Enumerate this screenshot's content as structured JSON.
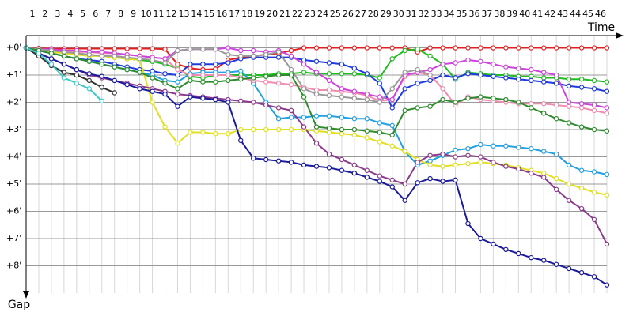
{
  "chart_data": {
    "type": "line",
    "x_label": "Time",
    "y_label": "Gap",
    "x": [
      0,
      1,
      2,
      3,
      4,
      5,
      6,
      7,
      8,
      9,
      10,
      11,
      12,
      13,
      14,
      15,
      16,
      17,
      18,
      19,
      20,
      21,
      22,
      23,
      24,
      25,
      26,
      27,
      28,
      29,
      30,
      31,
      32,
      33,
      34,
      35,
      36,
      37,
      38,
      39,
      40,
      41,
      42,
      43,
      44,
      45,
      46
    ],
    "xlim": [
      0,
      46
    ],
    "xticks": [
      {
        "value": 0.5,
        "label": "1"
      },
      {
        "value": 1.5,
        "label": "2"
      },
      {
        "value": 2.5,
        "label": "3"
      },
      {
        "value": 3.5,
        "label": "4"
      },
      {
        "value": 4.5,
        "label": "5"
      },
      {
        "value": 5.5,
        "label": "6"
      },
      {
        "value": 6.5,
        "label": "7"
      },
      {
        "value": 7.5,
        "label": "8"
      },
      {
        "value": 8.5,
        "label": "9"
      },
      {
        "value": 9.5,
        "label": "10"
      },
      {
        "value": 10.5,
        "label": "11"
      },
      {
        "value": 11.5,
        "label": "12"
      },
      {
        "value": 12.5,
        "label": "13"
      },
      {
        "value": 13.5,
        "label": "14"
      },
      {
        "value": 14.5,
        "label": "15"
      },
      {
        "value": 15.5,
        "label": "16"
      },
      {
        "value": 16.5,
        "label": "17"
      },
      {
        "value": 17.5,
        "label": "18"
      },
      {
        "value": 18.5,
        "label": "19"
      },
      {
        "value": 19.5,
        "label": "20"
      },
      {
        "value": 20.5,
        "label": "21"
      },
      {
        "value": 21.5,
        "label": "22"
      },
      {
        "value": 22.5,
        "label": "23"
      },
      {
        "value": 23.5,
        "label": "24"
      },
      {
        "value": 24.5,
        "label": "25"
      },
      {
        "value": 25.5,
        "label": "26"
      },
      {
        "value": 26.5,
        "label": "27"
      },
      {
        "value": 27.5,
        "label": "28"
      },
      {
        "value": 28.5,
        "label": "29"
      },
      {
        "value": 29.5,
        "label": "30"
      },
      {
        "value": 30.5,
        "label": "31"
      },
      {
        "value": 31.5,
        "label": "32"
      },
      {
        "value": 32.5,
        "label": "33"
      },
      {
        "value": 33.5,
        "label": "34"
      },
      {
        "value": 34.5,
        "label": "35"
      },
      {
        "value": 35.5,
        "label": "36"
      },
      {
        "value": 36.5,
        "label": "37"
      },
      {
        "value": 37.5,
        "label": "38"
      },
      {
        "value": 38.5,
        "label": "39"
      },
      {
        "value": 39.5,
        "label": "40"
      },
      {
        "value": 40.5,
        "label": "41"
      },
      {
        "value": 41.5,
        "label": "42"
      },
      {
        "value": 42.5,
        "label": "43"
      },
      {
        "value": 43.5,
        "label": "44"
      },
      {
        "value": 44.5,
        "label": "45"
      },
      {
        "value": 45.5,
        "label": "46"
      }
    ],
    "ylim": [
      -0.45,
      9
    ],
    "yticks": [
      {
        "value": 0,
        "label": "+0'"
      },
      {
        "value": 1,
        "label": "+1'"
      },
      {
        "value": 2,
        "label": "+2'"
      },
      {
        "value": 3,
        "label": "+3'"
      },
      {
        "value": 4,
        "label": "+4'"
      },
      {
        "value": 5,
        "label": "+5'"
      },
      {
        "value": 6,
        "label": "+6'"
      },
      {
        "value": 7,
        "label": "+7'"
      },
      {
        "value": 8,
        "label": "+8'"
      }
    ],
    "grid": true,
    "series": [
      {
        "color": "#e02020",
        "values": [
          0,
          0.02,
          0.03,
          0.03,
          0.03,
          0.03,
          0.03,
          0.03,
          0.03,
          0.03,
          0.03,
          0.05,
          0.6,
          0.75,
          0.8,
          0.78,
          0.45,
          0.35,
          0.3,
          0.25,
          0.2,
          0.1,
          0,
          0,
          0,
          0,
          0,
          0,
          0,
          0,
          0,
          0.15,
          0,
          0,
          0,
          0,
          0,
          0,
          0,
          0,
          0,
          0,
          0,
          0,
          0,
          0,
          0
        ]
      },
      {
        "color": "#22bb22",
        "values": [
          0,
          0.05,
          0.1,
          0.15,
          0.2,
          0.25,
          0.3,
          0.35,
          0.4,
          0.45,
          0.5,
          0.6,
          0.75,
          1.05,
          1.1,
          1.0,
          1.0,
          1.0,
          1.0,
          1.0,
          0.95,
          0.95,
          0.9,
          0.95,
          0.95,
          0.95,
          0.95,
          1.0,
          1.1,
          0.4,
          0.1,
          0.05,
          0.3,
          0.6,
          1.15,
          0.9,
          0.95,
          1.0,
          1.0,
          1.05,
          1.05,
          1.1,
          1.1,
          1.15,
          1.15,
          1.2,
          1.25
        ]
      },
      {
        "color": "#1e3adc",
        "values": [
          0,
          0.1,
          0.2,
          0.3,
          0.4,
          0.45,
          0.5,
          0.6,
          0.7,
          0.8,
          0.85,
          0.95,
          1.0,
          0.6,
          0.6,
          0.6,
          0.55,
          0.4,
          0.35,
          0.35,
          0.35,
          0.35,
          0.45,
          0.5,
          0.55,
          0.6,
          0.75,
          0.95,
          1.3,
          2.2,
          1.5,
          1.3,
          1.2,
          1.0,
          1.1,
          0.95,
          1.0,
          1.05,
          1.1,
          1.15,
          1.2,
          1.25,
          1.3,
          1.4,
          1.45,
          1.5,
          1.6
        ]
      },
      {
        "color": "#22a0e0",
        "values": [
          0,
          0.1,
          0.2,
          0.3,
          0.4,
          0.5,
          0.6,
          0.7,
          0.8,
          0.9,
          1.0,
          1.2,
          1.25,
          0.95,
          0.9,
          0.9,
          0.9,
          0.85,
          1.3,
          2.0,
          2.6,
          2.55,
          2.55,
          2.5,
          2.5,
          2.55,
          2.6,
          2.6,
          2.75,
          2.85,
          3.8,
          4.3,
          4.15,
          3.95,
          3.75,
          3.7,
          3.55,
          3.6,
          3.6,
          3.65,
          3.7,
          3.8,
          3.9,
          4.3,
          4.5,
          4.55,
          4.65
        ]
      },
      {
        "color": "#e0e020",
        "values": [
          0,
          0.1,
          0.15,
          0.2,
          0.25,
          0.3,
          0.3,
          0.35,
          0.4,
          0.45,
          2.0,
          2.9,
          3.5,
          3.1,
          3.1,
          3.15,
          3.15,
          3.0,
          3.0,
          3.0,
          3.0,
          3.0,
          3.0,
          3.05,
          3.1,
          3.15,
          3.2,
          3.3,
          3.45,
          3.6,
          3.8,
          4.1,
          4.3,
          4.35,
          4.3,
          4.25,
          4.2,
          4.25,
          4.3,
          4.4,
          4.5,
          4.6,
          4.8,
          5.0,
          5.15,
          5.3,
          5.4
        ]
      },
      {
        "color": "#8b3a8b",
        "values": [
          0,
          0.2,
          0.4,
          0.6,
          0.8,
          1.0,
          1.1,
          1.2,
          1.3,
          1.4,
          1.5,
          1.6,
          1.7,
          1.75,
          1.8,
          1.85,
          1.9,
          1.95,
          2.0,
          2.1,
          2.2,
          2.3,
          2.9,
          3.5,
          3.9,
          4.1,
          4.3,
          4.5,
          4.7,
          4.85,
          5.0,
          4.2,
          3.95,
          3.9,
          4.0,
          3.95,
          4.0,
          4.2,
          4.35,
          4.45,
          4.6,
          4.75,
          5.2,
          5.6,
          5.9,
          6.3,
          7.2
        ]
      },
      {
        "color": "#1a1a99",
        "values": [
          0,
          0.2,
          0.4,
          0.6,
          0.8,
          0.95,
          1.05,
          1.2,
          1.35,
          1.5,
          1.6,
          1.7,
          2.15,
          1.8,
          1.85,
          1.9,
          2.0,
          3.4,
          4.05,
          4.1,
          4.15,
          4.2,
          4.3,
          4.35,
          4.4,
          4.5,
          4.6,
          4.75,
          4.9,
          5.1,
          5.6,
          4.95,
          4.8,
          4.9,
          4.85,
          6.45,
          7.0,
          7.2,
          7.4,
          7.55,
          7.7,
          7.8,
          7.95,
          8.1,
          8.25,
          8.4,
          8.7
        ]
      },
      {
        "color": "#f08cb0",
        "values": [
          0,
          0.05,
          0.1,
          0.1,
          0.15,
          0.15,
          0.2,
          0.2,
          0.25,
          0.3,
          0.35,
          0.4,
          0.8,
          1.0,
          1.0,
          1.0,
          1.0,
          1.1,
          1.2,
          1.25,
          1.3,
          1.35,
          1.45,
          1.55,
          1.55,
          1.6,
          1.65,
          1.75,
          1.95,
          1.9,
          1.05,
          0.9,
          1.0,
          1.5,
          2.1,
          1.8,
          1.9,
          1.95,
          2.0,
          2.05,
          2.05,
          2.05,
          2.1,
          2.15,
          2.2,
          2.3,
          2.4
        ]
      },
      {
        "color": "#cc44dd",
        "values": [
          0,
          0.05,
          0.05,
          0.1,
          0.1,
          0.15,
          0.15,
          0.2,
          0.25,
          0.3,
          0.35,
          0.4,
          0.1,
          0.05,
          0.05,
          0.05,
          0.0,
          0.1,
          0.1,
          0.15,
          0.1,
          0.3,
          0.6,
          0.9,
          1.2,
          1.5,
          1.6,
          1.7,
          1.8,
          1.9,
          1.0,
          0.9,
          0.8,
          0.6,
          0.55,
          0.45,
          0.5,
          0.6,
          0.7,
          0.75,
          0.8,
          0.9,
          1.0,
          2.0,
          2.05,
          2.1,
          2.2
        ]
      },
      {
        "color": "#999999",
        "values": [
          0,
          0.05,
          0.1,
          0.15,
          0.2,
          0.25,
          0.3,
          0.3,
          0.35,
          0.4,
          0.45,
          0.55,
          0.1,
          0.05,
          0.05,
          0.05,
          0.25,
          0.3,
          0.3,
          0.25,
          0.15,
          0.8,
          1.5,
          1.7,
          1.75,
          1.8,
          1.85,
          1.9,
          2.0,
          1.5,
          0.9,
          0.8,
          1.0,
          null,
          null,
          null,
          null,
          null,
          null,
          null,
          null,
          null,
          null,
          null,
          null,
          null,
          null
        ]
      },
      {
        "color": "#2e8b2e",
        "values": [
          0,
          0.1,
          0.2,
          0.3,
          0.4,
          0.5,
          0.6,
          0.7,
          0.8,
          0.9,
          1.1,
          1.3,
          1.5,
          1.2,
          1.25,
          1.25,
          1.2,
          1.15,
          1.1,
          1.05,
          1.0,
          1.0,
          1.8,
          2.9,
          2.95,
          3.0,
          3.0,
          3.05,
          3.1,
          3.2,
          2.3,
          2.2,
          2.15,
          1.9,
          2.0,
          1.85,
          1.8,
          1.85,
          1.9,
          2.0,
          2.2,
          2.4,
          2.6,
          2.75,
          2.9,
          3.0,
          3.05
        ]
      },
      {
        "color": "#333333",
        "values": [
          0,
          0.3,
          0.65,
          0.9,
          1.0,
          1.2,
          1.45,
          1.65,
          null,
          null,
          null,
          null,
          null,
          null,
          null,
          null,
          null,
          null,
          null,
          null,
          null,
          null,
          null,
          null,
          null,
          null,
          null,
          null,
          null,
          null,
          null,
          null,
          null,
          null,
          null,
          null,
          null,
          null,
          null,
          null,
          null,
          null,
          null,
          null,
          null,
          null,
          null
        ]
      },
      {
        "color": "#40c8c8",
        "values": [
          0,
          0.2,
          0.6,
          1.1,
          1.3,
          1.5,
          1.95,
          null,
          null,
          null,
          null,
          null,
          null,
          null,
          null,
          null,
          null,
          null,
          null,
          null,
          null,
          null,
          null,
          null,
          null,
          null,
          null,
          null,
          null,
          null,
          null,
          null,
          null,
          null,
          null,
          null,
          null,
          null,
          null,
          null,
          null,
          null,
          null,
          null,
          null,
          null,
          null
        ]
      }
    ]
  }
}
